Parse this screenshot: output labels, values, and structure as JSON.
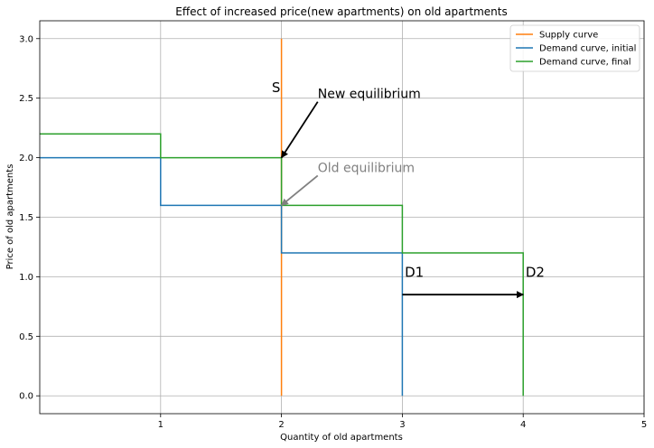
{
  "chart_data": {
    "type": "line",
    "title": "Effect of increased price(new apartments) on old apartments",
    "xlabel": "Quantity of old apartments",
    "ylabel": "Price of old apartments",
    "xlim": [
      0,
      5
    ],
    "ylim": [
      -0.15,
      3.15
    ],
    "xticks": [
      1,
      2,
      3,
      4,
      5
    ],
    "xtick_labels": [
      "1",
      "2",
      "3",
      "4",
      "5"
    ],
    "yticks": [
      0.0,
      0.5,
      1.0,
      1.5,
      2.0,
      2.5,
      3.0
    ],
    "ytick_labels": [
      "0.0",
      "0.5",
      "1.0",
      "1.5",
      "2.0",
      "2.5",
      "3.0"
    ],
    "grid": true,
    "legend_position": "top-right",
    "series": [
      {
        "name": "Supply curve",
        "color": "#ff7f0e",
        "x": [
          2,
          2
        ],
        "y": [
          0,
          3
        ]
      },
      {
        "name": "Demand curve, initial",
        "color": "#1f77b4",
        "x": [
          0,
          1,
          1,
          2,
          2,
          3,
          3
        ],
        "y": [
          2.0,
          2.0,
          1.6,
          1.6,
          1.2,
          1.2,
          0
        ]
      },
      {
        "name": "Demand curve, final",
        "color": "#2ca02c",
        "x": [
          0,
          1,
          1,
          2,
          2,
          3,
          3,
          4,
          4
        ],
        "y": [
          2.2,
          2.2,
          2.0,
          2.0,
          1.6,
          1.6,
          1.2,
          1.2,
          0
        ]
      }
    ],
    "annotations": [
      {
        "id": "new-eq",
        "text": "New equilibrium",
        "text_x": 2.3,
        "text_y": 2.5,
        "arrow_to": [
          2.0,
          2.0
        ],
        "color": "#000000"
      },
      {
        "id": "old-eq",
        "text": "Old equilibrium",
        "text_x": 2.3,
        "text_y": 1.88,
        "arrow_to": [
          2.0,
          1.6
        ],
        "color": "#808080"
      },
      {
        "id": "shift",
        "text": "",
        "text_x": 3.0,
        "text_y": 0.85,
        "arrow_to": [
          4.0,
          0.85
        ],
        "color": "#000000"
      }
    ],
    "labels": [
      {
        "id": "s-label",
        "text": "S",
        "x": 1.92,
        "y": 2.55
      },
      {
        "id": "d1-label",
        "text": "D1",
        "x": 3.02,
        "y": 1.0
      },
      {
        "id": "d2-label",
        "text": "D2",
        "x": 4.02,
        "y": 1.0
      }
    ]
  }
}
